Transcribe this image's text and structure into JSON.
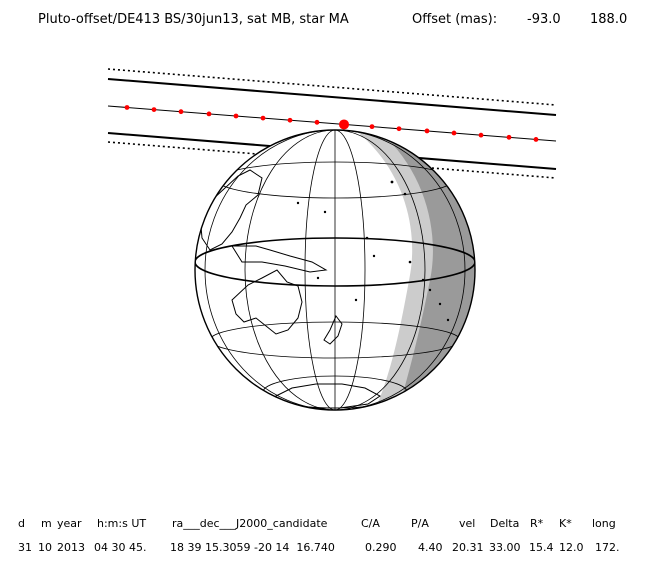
{
  "title": "Pluto-offset/DE413 BS/30jun13, sat MB, star MA",
  "offset": {
    "label": "Offset (mas):",
    "ra": "-93.0",
    "dec": "188.0"
  },
  "table": {
    "headers": [
      "d",
      "m",
      "year",
      "h:m:s UT",
      "ra___dec___J2000_candidate",
      "C/A",
      "P/A",
      "vel",
      "Delta",
      "R*",
      "K*",
      "long"
    ],
    "values": [
      "31",
      "10",
      "2013",
      "04 30 45.",
      "18 39 15.3059 -20 14  16.740",
      "0.290",
      "4.40",
      "20.31",
      "33.00",
      "15.4",
      "12.0",
      "172."
    ]
  },
  "colors": {
    "track_dots": "#ff0000",
    "night": "#9a9a9a",
    "twilight": "#cccccc",
    "lines": "#000000"
  }
}
